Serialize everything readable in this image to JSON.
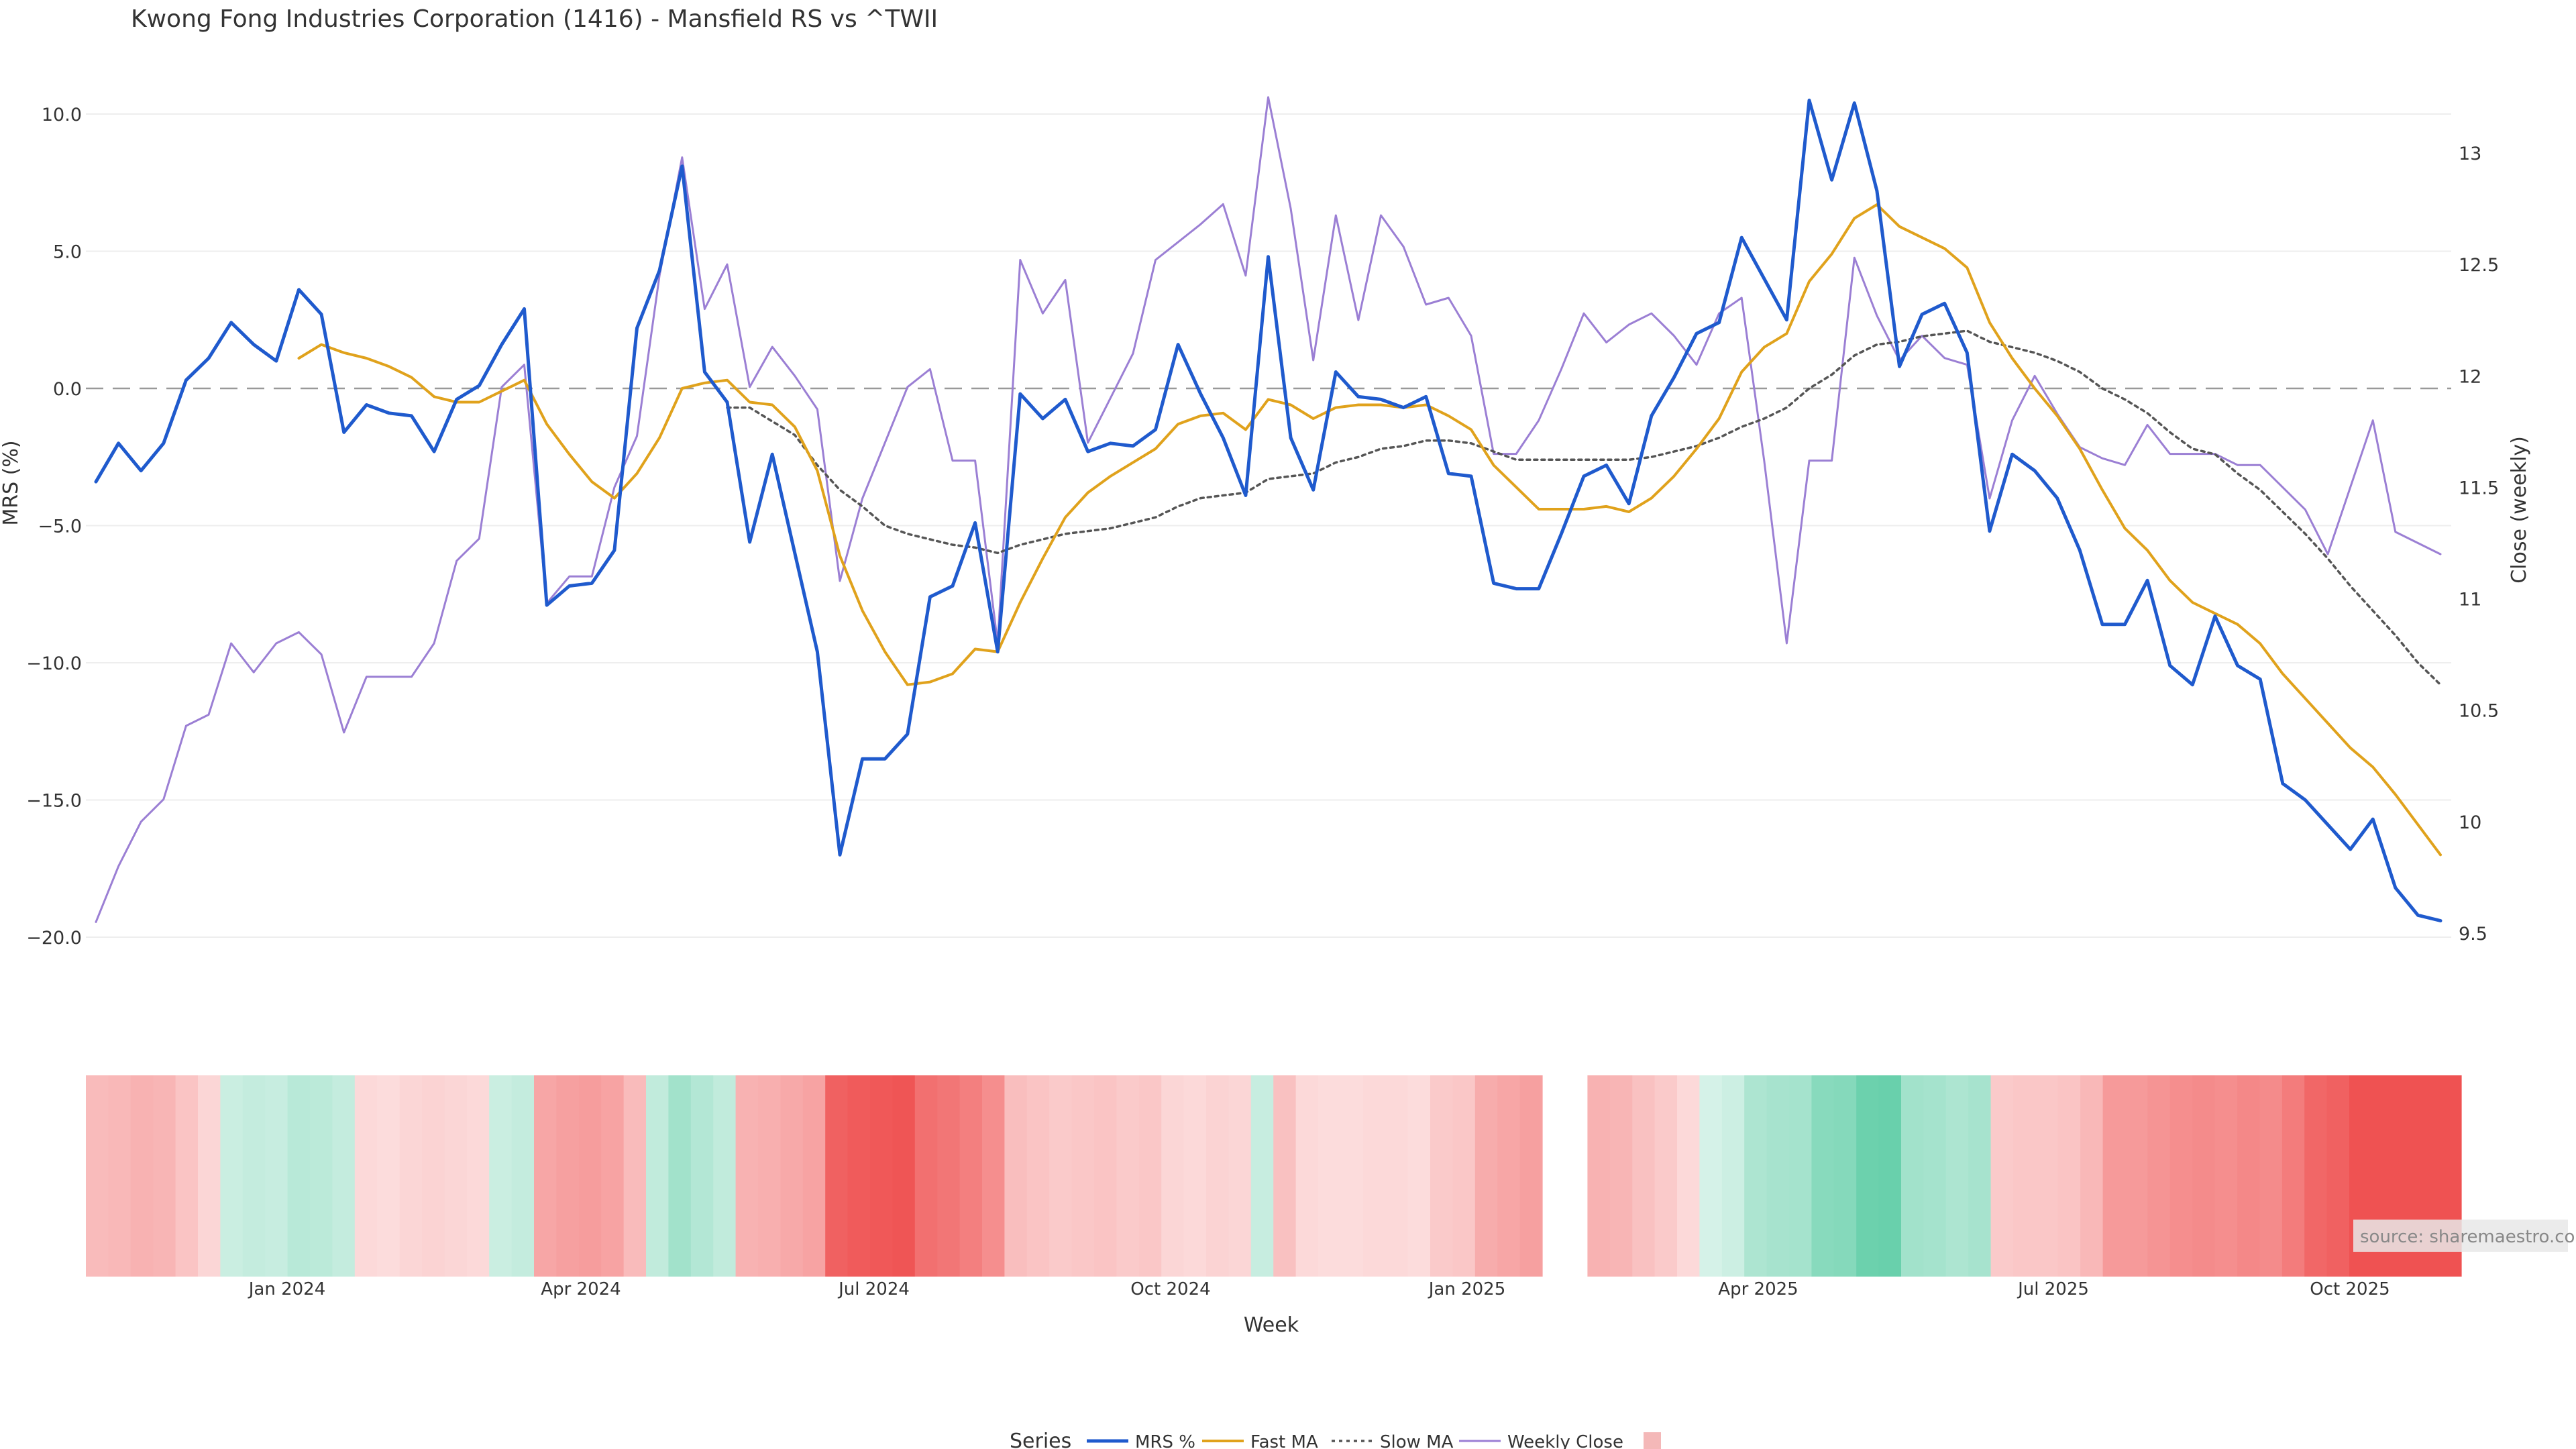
{
  "chart_data": {
    "type": "line",
    "title": "Kwong Fong Industries Corporation (1416) - Mansfield RS vs ^TWII",
    "xlabel": "Week",
    "ylabel": "MRS (%)",
    "y2label": "Close (weekly)",
    "ylim": [
      -21,
      11
    ],
    "y2lim": [
      9.45,
      13.3
    ],
    "yticks": [
      "10.0",
      "5.0",
      "0.0",
      "−5.0",
      "−10.0",
      "−15.0",
      "−20.0"
    ],
    "y2ticks": [
      "13",
      "12.5",
      "12",
      "11.5",
      "11",
      "10.5",
      "10",
      "9.5"
    ],
    "xticks": [
      "Jan 2024",
      "Apr 2024",
      "Jul 2024",
      "Oct 2024",
      "Jan 2025",
      "Apr 2025",
      "Jul 2025",
      "Oct 2025"
    ],
    "legend_title": "Series",
    "legend_position": "bottom",
    "source": "source: sharemaestro.com",
    "series": [
      {
        "name": "MRS %",
        "color": "#1f5acd",
        "values": [
          -3.4,
          -2.0,
          -3.0,
          -2.0,
          0.3,
          1.1,
          2.4,
          1.6,
          1.0,
          3.6,
          2.7,
          -1.6,
          -0.6,
          -0.9,
          -1.0,
          -2.3,
          -0.4,
          0.1,
          1.6,
          2.9,
          -7.9,
          -7.2,
          -7.1,
          -5.9,
          2.2,
          4.3,
          8.1,
          0.6,
          -0.5,
          -5.6,
          -2.4,
          -6.0,
          -9.6,
          -17.0,
          -13.5,
          -13.5,
          -12.6,
          -7.6,
          -7.2,
          -4.9,
          -9.6,
          -0.2,
          -1.1,
          -0.4,
          -2.3,
          -2.0,
          -2.1,
          -1.5,
          1.6,
          -0.2,
          -1.8,
          -3.9,
          4.8,
          -1.8,
          -3.7,
          0.6,
          -0.3,
          -0.4,
          -0.7,
          -0.3,
          -3.1,
          -3.2,
          -7.1,
          -7.3,
          -7.3,
          -5.3,
          -3.2,
          -2.8,
          -4.2,
          -1.0,
          0.4,
          2.0,
          2.4,
          5.5,
          4.0,
          2.5,
          10.5,
          7.6,
          10.4,
          7.2,
          0.8,
          2.7,
          3.1,
          1.3,
          -5.2,
          -2.4,
          -3.0,
          -4.0,
          -5.9,
          -8.6,
          -8.6,
          -7.0,
          -10.1,
          -10.8,
          -8.3,
          -10.1,
          -10.6,
          -14.4,
          -15.0,
          -15.9,
          -16.8,
          -15.7,
          -18.2,
          -19.2,
          -19.4
        ]
      },
      {
        "name": "Fast MA",
        "color": "#e0a21c",
        "values": [
          null,
          null,
          null,
          null,
          null,
          null,
          null,
          null,
          null,
          1.1,
          1.6,
          1.3,
          1.1,
          0.8,
          0.4,
          -0.3,
          -0.5,
          -0.5,
          -0.1,
          0.3,
          -1.3,
          -2.4,
          -3.4,
          -4.0,
          -3.1,
          -1.8,
          0.0,
          0.2,
          0.3,
          -0.5,
          -0.6,
          -1.4,
          -3.0,
          -6.1,
          -8.1,
          -9.6,
          -10.8,
          -10.7,
          -10.4,
          -9.5,
          -9.6,
          -7.8,
          -6.2,
          -4.7,
          -3.8,
          -3.2,
          -2.7,
          -2.2,
          -1.3,
          -1.0,
          -0.9,
          -1.5,
          -0.4,
          -0.6,
          -1.1,
          -0.7,
          -0.6,
          -0.6,
          -0.7,
          -0.6,
          -1.0,
          -1.5,
          -2.8,
          -3.6,
          -4.4,
          -4.4,
          -4.4,
          -4.3,
          -4.5,
          -4.0,
          -3.2,
          -2.2,
          -1.1,
          0.6,
          1.5,
          2.0,
          3.9,
          4.9,
          6.2,
          6.7,
          5.9,
          5.5,
          5.1,
          4.4,
          2.4,
          1.1,
          0.0,
          -1.0,
          -2.2,
          -3.7,
          -5.1,
          -5.9,
          -7.0,
          -7.8,
          -8.2,
          -8.6,
          -9.3,
          -10.4,
          -11.3,
          -12.2,
          -13.1,
          -13.8,
          -14.8,
          -15.9,
          -17.0
        ]
      },
      {
        "name": "Slow MA",
        "color": "#555555",
        "values": [
          null,
          null,
          null,
          null,
          null,
          null,
          null,
          null,
          null,
          null,
          null,
          null,
          null,
          null,
          null,
          null,
          null,
          null,
          null,
          null,
          null,
          null,
          null,
          null,
          null,
          null,
          null,
          null,
          -0.7,
          -0.7,
          -1.2,
          -1.7,
          -2.8,
          -3.7,
          -4.3,
          -5.0,
          -5.3,
          -5.5,
          -5.7,
          -5.8,
          -6.0,
          -5.7,
          -5.5,
          -5.3,
          -5.2,
          -5.1,
          -4.9,
          -4.7,
          -4.3,
          -4.0,
          -3.9,
          -3.8,
          -3.3,
          -3.2,
          -3.1,
          -2.7,
          -2.5,
          -2.2,
          -2.1,
          -1.9,
          -1.9,
          -2.0,
          -2.3,
          -2.6,
          -2.6,
          -2.6,
          -2.6,
          -2.6,
          -2.6,
          -2.5,
          -2.3,
          -2.1,
          -1.8,
          -1.4,
          -1.1,
          -0.7,
          0.0,
          0.5,
          1.2,
          1.6,
          1.7,
          1.9,
          2.0,
          2.1,
          1.7,
          1.5,
          1.3,
          1.0,
          0.6,
          0.0,
          -0.4,
          -0.9,
          -1.6,
          -2.2,
          -2.4,
          -3.1,
          -3.7,
          -4.5,
          -5.3,
          -6.2,
          -7.2,
          -8.1,
          -9.0,
          -10.0,
          -10.8
        ]
      },
      {
        "name": "Weekly Close",
        "color": "#9b7fd4",
        "axis": "right",
        "values": [
          9.55,
          9.8,
          10.0,
          10.1,
          10.43,
          10.48,
          10.8,
          10.67,
          10.8,
          10.85,
          10.75,
          10.4,
          10.65,
          10.65,
          10.65,
          10.8,
          11.17,
          11.27,
          11.95,
          12.05,
          10.98,
          11.1,
          11.1,
          11.5,
          11.73,
          12.45,
          12.98,
          12.3,
          12.5,
          11.95,
          12.13,
          12.0,
          11.85,
          11.08,
          11.45,
          11.7,
          11.95,
          12.03,
          11.62,
          11.62,
          10.8,
          12.52,
          12.28,
          12.43,
          11.7,
          11.9,
          12.1,
          12.52,
          12.6,
          12.68,
          12.77,
          12.45,
          13.25,
          12.75,
          12.07,
          12.72,
          12.25,
          12.72,
          12.58,
          12.32,
          12.35,
          12.18,
          11.65,
          11.65,
          11.8,
          12.03,
          12.28,
          12.15,
          12.23,
          12.28,
          12.18,
          12.05,
          12.28,
          12.35,
          11.62,
          10.8,
          11.62,
          11.62,
          12.53,
          12.27,
          12.07,
          12.18,
          12.08,
          12.05,
          11.45,
          11.8,
          12.0,
          11.83,
          11.68,
          11.63,
          11.6,
          11.78,
          11.65,
          11.65,
          11.65,
          11.6,
          11.6,
          11.5,
          11.4,
          11.2,
          11.5,
          11.8,
          11.3,
          11.25,
          11.2
        ]
      },
      {
        "name": "",
        "color": "#f4b8b8",
        "type": "heatmap",
        "values": [
          -1.5,
          -1.6,
          -1.8,
          -1.7,
          -1.2,
          -0.6,
          1.0,
          1.2,
          1.1,
          1.6,
          1.5,
          1.2,
          -0.5,
          -0.4,
          -0.6,
          -0.7,
          -0.6,
          -0.5,
          1.0,
          1.2,
          -2.2,
          -2.4,
          -2.5,
          -2.3,
          -1.5,
          1.3,
          2.4,
          1.8,
          1.3,
          -1.8,
          -1.9,
          -2.1,
          -2.3,
          -4.5,
          -4.7,
          -4.8,
          -4.9,
          -4.0,
          -3.8,
          -3.5,
          -3.0,
          -1.4,
          -1.2,
          -1.0,
          -1.1,
          -1.2,
          -1.0,
          -1.1,
          -0.6,
          -0.5,
          -0.7,
          -0.6,
          1.1,
          -1.3,
          -0.5,
          -0.4,
          -0.4,
          -0.5,
          -0.5,
          -0.4,
          -1.0,
          -1.1,
          -2.0,
          -2.2,
          -2.4,
          -2.0,
          -1.8,
          -1.7,
          -1.3,
          -1.0,
          -0.5,
          0.6,
          0.9,
          2.0,
          2.2,
          2.3,
          3.3,
          3.4,
          4.3,
          4.4,
          2.4,
          2.3,
          2.0,
          2.2,
          -1.0,
          -1.1,
          -1.1,
          -1.2,
          -1.6,
          -2.6,
          -2.6,
          -2.8,
          -3.0,
          -3.1,
          -3.0,
          -3.2,
          -3.1,
          -3.6,
          -4.3,
          -4.5,
          -5.0,
          -5.0,
          -5.0,
          -5.0,
          -5.0
        ]
      }
    ]
  }
}
